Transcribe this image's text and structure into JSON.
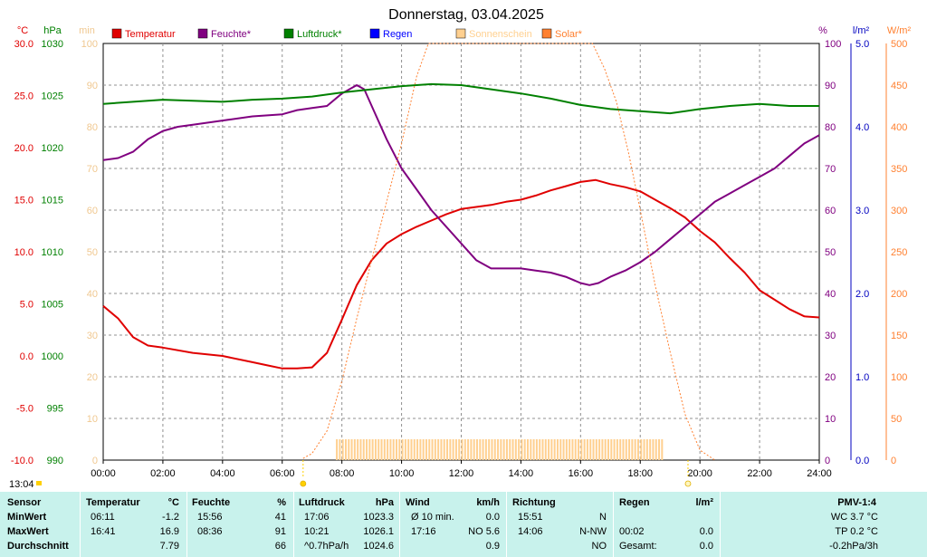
{
  "header": {
    "title": "Donnerstag, 03.04.2025",
    "unit_labels": {
      "temp": "°C",
      "press": "hPa",
      "min": "min",
      "hum": "%",
      "rain": "l/m²",
      "solar": "W/m²"
    }
  },
  "legend": [
    {
      "label": "Temperatur",
      "color": "#e00000"
    },
    {
      "label": "Feuchte*",
      "color": "#800080"
    },
    {
      "label": "Luftdruck*",
      "color": "#008000"
    },
    {
      "label": "Regen",
      "color": "#0000ff"
    },
    {
      "label": "Sonnenschein",
      "color": "#ffd090"
    },
    {
      "label": "Solar*",
      "color": "#ff8030"
    }
  ],
  "chart_data": {
    "type": "line",
    "title": "Donnerstag, 03.04.2025",
    "x_ticks": [
      "00:00",
      "02:00",
      "04:00",
      "06:00",
      "08:00",
      "10:00",
      "12:00",
      "14:00",
      "16:00",
      "18:00",
      "20:00",
      "22:00",
      "24:00"
    ],
    "axes": {
      "temperature": {
        "unit": "°C",
        "range": [
          -10,
          30
        ],
        "ticks": [
          "30.0",
          "25.0",
          "20.0",
          "15.0",
          "10.0",
          "5.0",
          "0.0",
          "-5.0",
          "-10.0"
        ]
      },
      "pressure": {
        "unit": "hPa",
        "range": [
          990,
          1030
        ],
        "ticks": [
          "1030",
          "1025",
          "1020",
          "1015",
          "1010",
          "1005",
          "1000",
          "995",
          "990"
        ]
      },
      "sunshine": {
        "unit": "min",
        "range": [
          0,
          100
        ],
        "ticks": [
          "100",
          "90",
          "80",
          "70",
          "60",
          "50",
          "40",
          "30",
          "20",
          "10",
          "0"
        ]
      },
      "humidity": {
        "unit": "%",
        "range": [
          0,
          100
        ],
        "ticks": [
          "100",
          "90",
          "80",
          "70",
          "60",
          "50",
          "40",
          "30",
          "20",
          "10",
          "0"
        ]
      },
      "rain": {
        "unit": "l/m²",
        "range": [
          0,
          5
        ],
        "ticks": [
          "5.0",
          "4.0",
          "3.0",
          "2.0",
          "1.0",
          "0.0"
        ]
      },
      "solar": {
        "unit": "W/m²",
        "range": [
          0,
          500
        ],
        "ticks": [
          "500",
          "450",
          "400",
          "350",
          "300",
          "250",
          "200",
          "150",
          "100",
          "50",
          "0"
        ]
      }
    },
    "grid": true,
    "series": [
      {
        "name": "Temperatur",
        "axis": "temperature",
        "color": "#e00000",
        "x": [
          0,
          0.5,
          1,
          1.5,
          2,
          3,
          4,
          5,
          5.5,
          6,
          6.5,
          7,
          7.5,
          8,
          8.5,
          9,
          9.5,
          10,
          10.5,
          11,
          11.5,
          12,
          12.5,
          13,
          13.5,
          14,
          14.5,
          15,
          15.5,
          16,
          16.5,
          17,
          17.5,
          18,
          18.5,
          19,
          19.5,
          20,
          20.5,
          21,
          21.5,
          22,
          22.5,
          23,
          23.5,
          24
        ],
        "y": [
          4.8,
          3.6,
          1.8,
          1.0,
          0.8,
          0.3,
          0,
          -0.6,
          -0.9,
          -1.2,
          -1.2,
          -1.1,
          0.3,
          3.5,
          6.8,
          9.2,
          10.8,
          11.7,
          12.4,
          13.0,
          13.6,
          14.1,
          14.3,
          14.5,
          14.8,
          15.0,
          15.4,
          15.9,
          16.3,
          16.7,
          16.9,
          16.5,
          16.2,
          15.8,
          15.0,
          14.2,
          13.3,
          12.0,
          10.9,
          9.4,
          8.0,
          6.3,
          5.4,
          4.5,
          3.8,
          3.7
        ]
      },
      {
        "name": "Feuchte*",
        "axis": "humidity",
        "color": "#800080",
        "x": [
          0,
          0.5,
          1,
          1.5,
          2,
          2.5,
          3,
          4,
          5,
          6,
          6.5,
          7,
          7.5,
          8,
          8.5,
          8.75,
          9,
          9.5,
          10,
          10.5,
          11,
          11.5,
          12,
          12.5,
          13,
          14,
          14.5,
          15,
          15.5,
          16,
          16.3,
          16.6,
          17,
          17.5,
          18,
          18.5,
          19,
          19.5,
          20,
          20.5,
          21,
          21.5,
          22,
          22.5,
          23,
          23.5,
          24
        ],
        "y": [
          72,
          72.5,
          74,
          77,
          79,
          80,
          80.5,
          81.5,
          82.5,
          83,
          84,
          84.5,
          85,
          88,
          90,
          89,
          85,
          77,
          70,
          65,
          60,
          56,
          52,
          48,
          46,
          46,
          45.5,
          45,
          44,
          42.5,
          42,
          42.5,
          44,
          45.5,
          47.5,
          50,
          53,
          56,
          59,
          62,
          64,
          66,
          68,
          70,
          73,
          76,
          78
        ]
      },
      {
        "name": "Luftdruck*",
        "axis": "pressure",
        "color": "#008000",
        "x": [
          0,
          1,
          2,
          3,
          4,
          5,
          6,
          7,
          8,
          9,
          10,
          11,
          12,
          13,
          14,
          15,
          16,
          17,
          18,
          19,
          20,
          21,
          22,
          23,
          24
        ],
        "y": [
          1024.2,
          1024.4,
          1024.6,
          1024.5,
          1024.4,
          1024.6,
          1024.7,
          1024.9,
          1025.3,
          1025.6,
          1025.9,
          1026.1,
          1026.0,
          1025.6,
          1025.2,
          1024.7,
          1024.1,
          1023.7,
          1023.5,
          1023.3,
          1023.7,
          1024.0,
          1024.2,
          1024.0,
          1024.0
        ]
      },
      {
        "name": "Solar*",
        "axis": "solar",
        "color": "#ff8030",
        "x": [
          6.7,
          7,
          7.5,
          8,
          8.5,
          9,
          9.5,
          10,
          10.5,
          10.9,
          16.4,
          16.8,
          17.2,
          17.6,
          18,
          18.5,
          19,
          19.5,
          20,
          20.5
        ],
        "y": [
          2,
          8,
          35,
          95,
          170,
          240,
          310,
          380,
          460,
          500,
          500,
          470,
          430,
          370,
          300,
          210,
          130,
          55,
          12,
          0
        ]
      },
      {
        "name": "Sonnenschein",
        "axis": "sunshine",
        "color": "#ffd090",
        "x_start": 7.8,
        "x_end": 18.8,
        "y": 5
      }
    ]
  },
  "axis_markers": {
    "left_time": "13:04"
  },
  "stats": {
    "headers": {
      "sensor": "Sensor",
      "temperatur": "Temperatur",
      "temp_unit": "°C",
      "feuchte": "Feuchte",
      "feuchte_unit": "%",
      "luftdruck": "Luftdruck",
      "luftdruck_unit": "hPa",
      "wind": "Wind",
      "wind_unit": "km/h",
      "richtung": "Richtung",
      "regen": "Regen",
      "regen_unit": "l/m²",
      "pmv": "PMV-1:4"
    },
    "rows": [
      {
        "label": "MinWert",
        "t_time": "06:11",
        "t_val": "-1.2",
        "h_time": "15:56",
        "h_val": "41",
        "p_time": "17:06",
        "p_val": "1023.3",
        "w_time": "Ø 10 min.",
        "w_val": "0.0",
        "r_time": "15:51",
        "r_dir": "N",
        "rain_time": "",
        "rain_val": "",
        "pmv": "WC 3.7 °C"
      },
      {
        "label": "MaxWert",
        "t_time": "16:41",
        "t_val": "16.9",
        "h_time": "08:36",
        "h_val": "91",
        "p_time": "10:21",
        "p_val": "1026.1",
        "w_time": "17:16",
        "w_val": "NO 5.6",
        "r_time": "14:06",
        "r_dir": "N-NW",
        "rain_time": "00:02",
        "rain_val": "0.0",
        "pmv": "TP 0.2 °C"
      },
      {
        "label": "Durchschnitt",
        "t_time": "",
        "t_val": "7.79",
        "h_time": "",
        "h_val": "66",
        "p_time": "^0.7hPa/h",
        "p_val": "1024.6",
        "w_time": "",
        "w_val": "0.9",
        "r_time": "",
        "r_dir": "NO",
        "rain_time": "Gesamt:",
        "rain_val": "0.0",
        "pmv": "-0.2hPa/3h"
      }
    ]
  }
}
